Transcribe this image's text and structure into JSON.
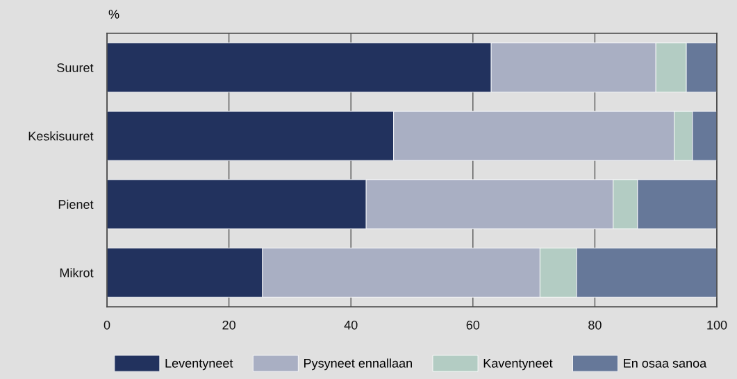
{
  "chart_data": {
    "type": "bar",
    "orientation": "horizontal",
    "stacked": true,
    "ylabel": "%",
    "categories": [
      "Suuret",
      "Keskisuuret",
      "Pienet",
      "Mikrot"
    ],
    "series": [
      {
        "name": "Leventyneet",
        "color": "#22325e",
        "values": [
          63,
          47,
          42.5,
          25.5
        ]
      },
      {
        "name": "Pysyneet ennallaan",
        "color": "#a9afc3",
        "values": [
          27,
          46,
          40.5,
          45.5
        ]
      },
      {
        "name": "Kaventyneet",
        "color": "#b3ccc3",
        "values": [
          5,
          3,
          4,
          6
        ]
      },
      {
        "name": "En osaa sanoa",
        "color": "#667899",
        "values": [
          5,
          4,
          13,
          23
        ]
      }
    ],
    "xlim": [
      0,
      100
    ],
    "xticks": [
      0,
      20,
      40,
      60,
      80,
      100
    ],
    "grid": "x",
    "legend": "bottom"
  }
}
